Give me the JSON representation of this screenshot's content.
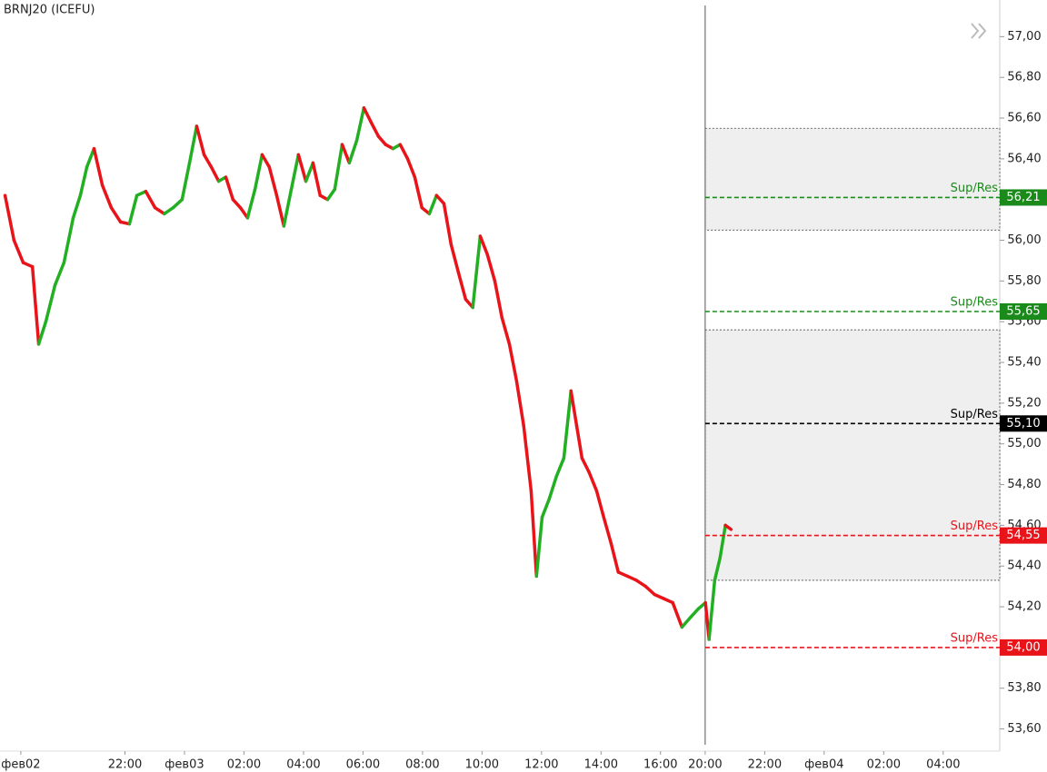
{
  "chart_data": {
    "type": "line",
    "title": "BRNJ20 (ICEFU)",
    "up_color": "#22b022",
    "down_color": "#e8141a",
    "x": [
      -4.03,
      -3.73,
      -3.42,
      -3.11,
      -2.9,
      -2.66,
      -2.35,
      -2.05,
      -1.74,
      -1.5,
      -1.28,
      -1.04,
      -0.76,
      -0.46,
      -0.15,
      0.15,
      0.4,
      0.7,
      1.01,
      1.32,
      1.62,
      1.92,
      2.17,
      2.41,
      2.66,
      2.9,
      3.15,
      3.39,
      3.63,
      3.88,
      4.12,
      4.37,
      4.61,
      4.85,
      5.1,
      5.34,
      5.59,
      5.83,
      6.08,
      6.32,
      6.56,
      6.81,
      7.05,
      7.3,
      7.54,
      7.79,
      8.03,
      8.27,
      8.52,
      8.76,
      9.01,
      9.25,
      9.5,
      9.74,
      9.98,
      10.23,
      10.47,
      10.72,
      10.96,
      11.21,
      11.45,
      11.69,
      11.94,
      12.18,
      12.43,
      12.67,
      12.92,
      13.16,
      13.4,
      13.65,
      13.83,
      14.02,
      14.26,
      14.5,
      14.75,
      14.99,
      15.18,
      15.36,
      15.6,
      15.85,
      16.09,
      16.34,
      16.58,
      16.89,
      17.19,
      17.5,
      17.8,
      18.11,
      18.41,
      18.72,
      19.02,
      19.27,
      19.51,
      19.63,
      19.82,
      20.0,
      20.18,
      20.37
    ],
    "values": [
      56.22,
      56.0,
      55.89,
      55.87,
      55.49,
      55.6,
      55.78,
      55.89,
      56.11,
      56.22,
      56.36,
      56.45,
      56.27,
      56.16,
      56.09,
      56.08,
      56.22,
      56.24,
      56.16,
      56.13,
      56.16,
      56.2,
      56.38,
      56.56,
      56.42,
      56.36,
      56.29,
      56.31,
      56.2,
      56.16,
      56.11,
      56.25,
      56.42,
      56.36,
      56.22,
      56.07,
      56.25,
      56.42,
      56.29,
      56.38,
      56.22,
      56.2,
      56.25,
      56.47,
      56.38,
      56.49,
      56.65,
      56.58,
      56.51,
      56.47,
      56.45,
      56.47,
      56.4,
      56.31,
      56.16,
      56.13,
      56.22,
      56.18,
      55.98,
      55.84,
      55.71,
      55.67,
      56.02,
      55.93,
      55.8,
      55.62,
      55.49,
      55.31,
      55.09,
      54.77,
      54.35,
      54.64,
      54.73,
      54.84,
      54.93,
      55.26,
      55.09,
      54.93,
      54.86,
      54.77,
      54.64,
      54.51,
      54.37,
      54.35,
      54.33,
      54.3,
      54.26,
      54.24,
      54.22,
      54.1,
      54.15,
      54.19,
      54.22,
      54.04,
      54.33,
      54.44,
      54.6,
      54.58
    ],
    "xlim": [
      -4.2,
      29.4
    ],
    "xticks": [
      {
        "value": -3.5,
        "label": "фев02"
      },
      {
        "value": 0,
        "label": "22:00"
      },
      {
        "value": 2,
        "label": "фев03"
      },
      {
        "value": 4,
        "label": "02:00"
      },
      {
        "value": 6,
        "label": "04:00"
      },
      {
        "value": 8,
        "label": "06:00"
      },
      {
        "value": 10,
        "label": "08:00"
      },
      {
        "value": 12,
        "label": "10:00"
      },
      {
        "value": 14,
        "label": "12:00"
      },
      {
        "value": 16,
        "label": "14:00"
      },
      {
        "value": 18,
        "label": "16:00"
      },
      {
        "value": 19.5,
        "label": "20:00"
      },
      {
        "value": 21.5,
        "label": "22:00"
      },
      {
        "value": 23.5,
        "label": "фев04"
      },
      {
        "value": 25.5,
        "label": "02:00"
      },
      {
        "value": 27.5,
        "label": "04:00"
      }
    ],
    "ylim": [
      53.5,
      57.18
    ],
    "yticks": [
      {
        "value": 53.6,
        "label": "53,60"
      },
      {
        "value": 53.8,
        "label": "53,80"
      },
      {
        "value": 54.0,
        "label": "54,00"
      },
      {
        "value": 54.2,
        "label": "54,20"
      },
      {
        "value": 54.4,
        "label": "54,40"
      },
      {
        "value": 54.6,
        "label": "54,60"
      },
      {
        "value": 54.8,
        "label": "54,80"
      },
      {
        "value": 55.0,
        "label": "55,00"
      },
      {
        "value": 55.2,
        "label": "55,20"
      },
      {
        "value": 55.4,
        "label": "55,40"
      },
      {
        "value": 55.6,
        "label": "55,60"
      },
      {
        "value": 55.8,
        "label": "55,80"
      },
      {
        "value": 56.0,
        "label": "56,00"
      },
      {
        "value": 56.2,
        "label": "56,20"
      },
      {
        "value": 56.4,
        "label": "56,40"
      },
      {
        "value": 56.6,
        "label": "56,60"
      },
      {
        "value": 56.8,
        "label": "56,80"
      },
      {
        "value": 57.0,
        "label": "57,00"
      }
    ],
    "zones": [
      {
        "from": 56.05,
        "to": 56.55
      },
      {
        "from": 54.33,
        "to": 55.56
      }
    ],
    "levels": [
      {
        "name": "Sup/Res",
        "value": 56.21,
        "label": "56,21",
        "color": "#1a8a1a"
      },
      {
        "name": "Sup/Res",
        "value": 55.65,
        "label": "55,65",
        "color": "#1a8a1a"
      },
      {
        "name": "Sup/Res",
        "value": 55.1,
        "label": "55,10",
        "color": "#000000"
      },
      {
        "name": "Sup/Res",
        "value": 54.55,
        "label": "54,55",
        "color": "#e8141a"
      },
      {
        "name": "Sup/Res",
        "value": 54.0,
        "label": "54,00",
        "color": "#e8141a"
      }
    ]
  }
}
